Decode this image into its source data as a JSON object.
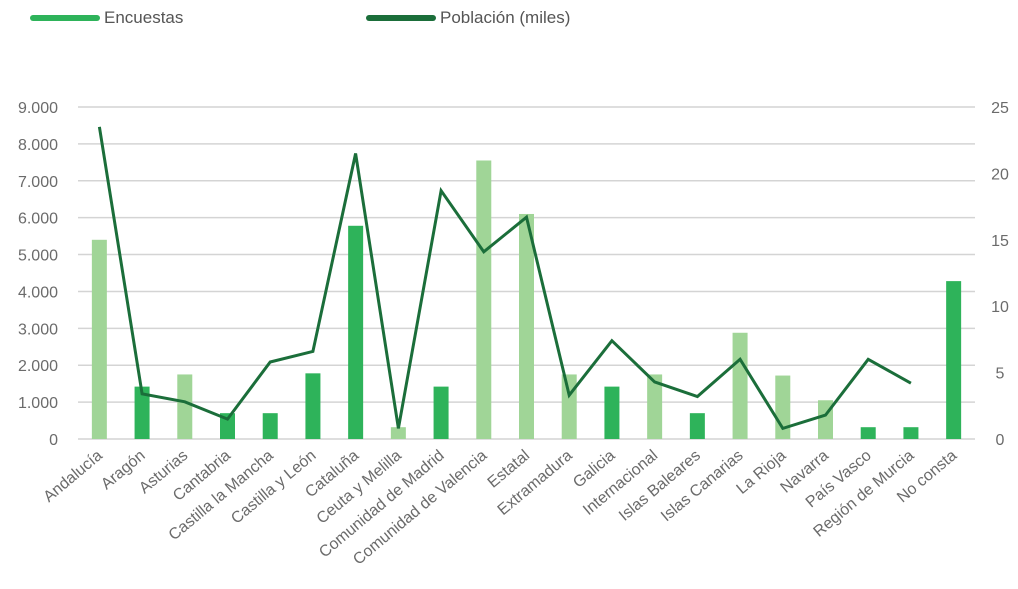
{
  "chart_data": {
    "type": "bar",
    "legend": {
      "placement": "top-left",
      "items": [
        {
          "label": "Encuestas",
          "color": "#2eb35a"
        },
        {
          "label": "Población (miles)",
          "color": "#1b6e3a"
        }
      ]
    },
    "categories": [
      "Andalucía",
      "Aragón",
      "Asturias",
      "Cantabria",
      "Castilla la Mancha",
      "Castilla y León",
      "Cataluña",
      "Ceuta y Melilla",
      "Comunidad de Madrid",
      "Comunidad de Valencia",
      "Estatal",
      "Extramadura",
      "Galicia",
      "Internacional",
      "Islas Baleares",
      "Islas Canarias",
      "La Rioja",
      "Navarra",
      "País Vasco",
      "Región de Murcia",
      "No consta"
    ],
    "series": [
      {
        "name": "Encuestas",
        "axis": "left",
        "values": [
          5400,
          1420,
          1750,
          700,
          700,
          1780,
          5780,
          320,
          1420,
          7550,
          6100,
          1750,
          1420,
          1750,
          700,
          2880,
          1720,
          1050,
          320,
          320,
          4280
        ],
        "bar_colors": [
          "#a0d597",
          "#2eb35a",
          "#a0d597",
          "#2eb35a",
          "#2eb35a",
          "#2eb35a",
          "#2eb35a",
          "#a0d597",
          "#2eb35a",
          "#a0d597",
          "#a0d597",
          "#a0d597",
          "#2eb35a",
          "#a0d597",
          "#2eb35a",
          "#a0d597",
          "#a0d597",
          "#a0d597",
          "#2eb35a",
          "#2eb35a",
          "#2eb35a"
        ]
      },
      {
        "name": "Población (miles)",
        "axis": "right",
        "color": "#1b6e3a",
        "values": [
          23.5,
          3.4,
          2.8,
          1.5,
          5.8,
          6.6,
          21.5,
          0.8,
          18.7,
          14.1,
          16.7,
          3.3,
          7.4,
          4.3,
          3.2,
          6.0,
          0.8,
          1.8,
          6.0,
          4.2,
          null
        ]
      }
    ],
    "y_left": {
      "ylim": [
        0,
        9000
      ],
      "ticks": [
        0,
        1000,
        2000,
        3000,
        4000,
        5000,
        6000,
        7000,
        8000,
        9000
      ],
      "tick_labels": [
        "0",
        "1.000",
        "2.000",
        "3.000",
        "4.000",
        "5.000",
        "6.000",
        "7.000",
        "8.000",
        "9.000"
      ]
    },
    "y_right": {
      "ylim": [
        0,
        25
      ],
      "ticks": [
        0,
        5,
        10,
        15,
        20,
        25
      ],
      "tick_labels": [
        "0",
        "5",
        "10",
        "15",
        "20",
        "25"
      ]
    },
    "grid": true,
    "title": "",
    "xlabel": "",
    "ylabel": ""
  }
}
